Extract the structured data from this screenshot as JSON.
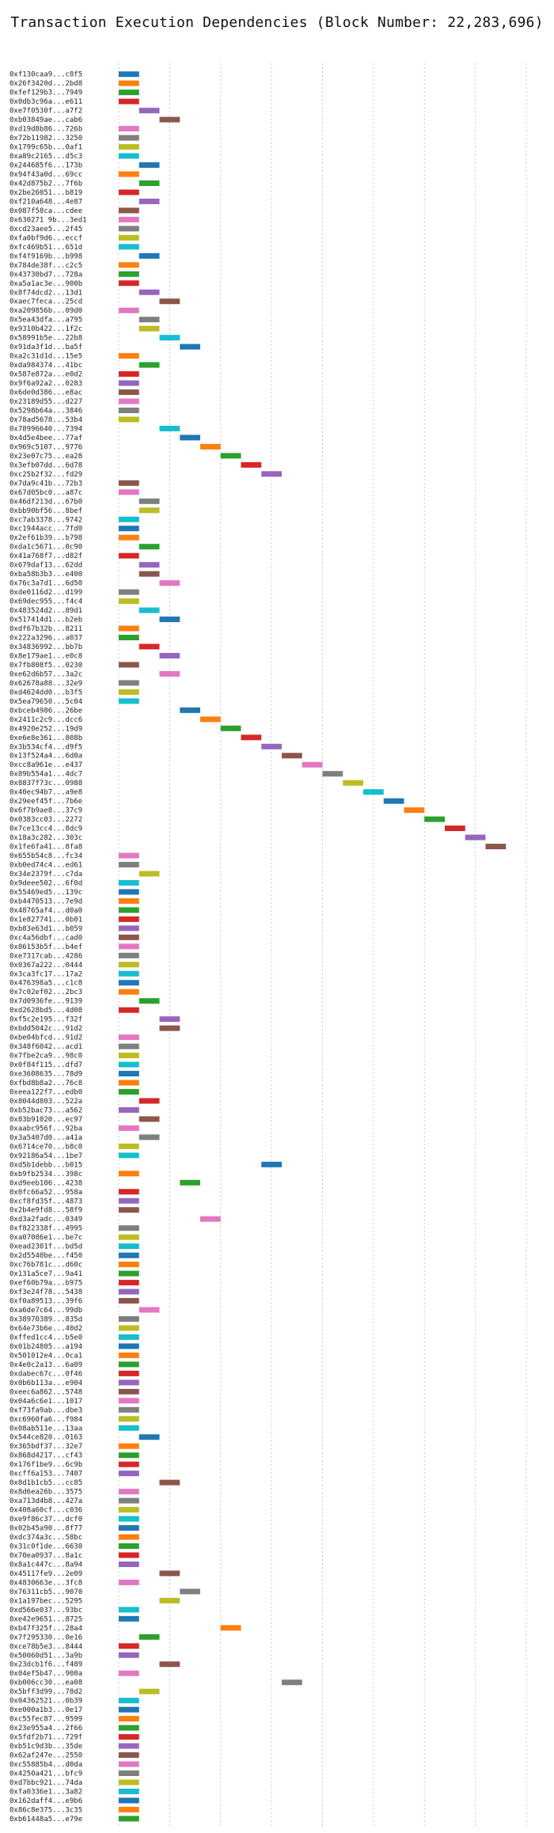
{
  "chart_data": {
    "type": "bar",
    "title": "Transaction Execution Dependencies (Block Number: 22,283,696)",
    "xlabel": "",
    "ylabel": "",
    "xlim": [
      0,
      20
    ],
    "xticks": [
      0,
      5,
      10,
      15,
      20
    ],
    "grid": true,
    "palette": [
      "#1f77b4",
      "#ff7f0e",
      "#2ca02c",
      "#d62728",
      "#9467bd",
      "#8c564b",
      "#e377c2",
      "#7f7f7f",
      "#bcbd22",
      "#17becf"
    ],
    "transactions": [
      {
        "label": "0xf130caa9...c8f5",
        "start": 0
      },
      {
        "label": "0x26f3420d...2bd8",
        "start": 0
      },
      {
        "label": "0xfef129b3...7949",
        "start": 0
      },
      {
        "label": "0x0db3c96a...e611",
        "start": 0
      },
      {
        "label": "0xe7f0530f...a7f2",
        "start": 1
      },
      {
        "label": "0xb03849ae...cab6",
        "start": 2
      },
      {
        "label": "0xd19d8b86...726b",
        "start": 0
      },
      {
        "label": "0x72b11982...3250",
        "start": 0
      },
      {
        "label": "0x1799c65b...0af1",
        "start": 0
      },
      {
        "label": "0xa89c2165...d5c3",
        "start": 0
      },
      {
        "label": "0x244685f6...173b",
        "start": 1
      },
      {
        "label": "0x94f43a0d...69cc",
        "start": 0
      },
      {
        "label": "0x42d875b2...7f6b",
        "start": 1
      },
      {
        "label": "0x2be26051...b819",
        "start": 0
      },
      {
        "label": "0xf210a648...4e87",
        "start": 1
      },
      {
        "label": "0x087f58ca...cdee",
        "start": 0
      },
      {
        "label": "0x630271 9b...3ed1",
        "start": 0
      },
      {
        "label": "0xcd23aee5...2f45",
        "start": 0
      },
      {
        "label": "0xfa0bf9d6...eccf",
        "start": 0
      },
      {
        "label": "0xfc469b51...651d",
        "start": 0
      },
      {
        "label": "0xf4f9169b...b998",
        "start": 1
      },
      {
        "label": "0x784de38f...c2c5",
        "start": 0
      },
      {
        "label": "0x43730bd7...728a",
        "start": 0
      },
      {
        "label": "0xa5a1ac3e...900b",
        "start": 0
      },
      {
        "label": "0x8f74dcd2...13d1",
        "start": 1
      },
      {
        "label": "0xaec7feca...25cd",
        "start": 2
      },
      {
        "label": "0xa209856b...09d0",
        "start": 0
      },
      {
        "label": "0x5ea43dfa...a795",
        "start": 1
      },
      {
        "label": "0x9310b422...1f2c",
        "start": 1
      },
      {
        "label": "0x58991b5e...22b8",
        "start": 2
      },
      {
        "label": "0x91da3f1d...ba5f",
        "start": 3
      },
      {
        "label": "0xa2c31d1d...15e5",
        "start": 0
      },
      {
        "label": "0xda984374...41bc",
        "start": 1
      },
      {
        "label": "0x587e872a...e0d2",
        "start": 0
      },
      {
        "label": "0x9f6a92a2...0283",
        "start": 0
      },
      {
        "label": "0x6de0d386...e8ac",
        "start": 0
      },
      {
        "label": "0x23189d55...d227",
        "start": 0
      },
      {
        "label": "0x5298b64a...3846",
        "start": 0
      },
      {
        "label": "0x78ad5678...53b4",
        "start": 0
      },
      {
        "label": "0x78996640...7394",
        "start": 2
      },
      {
        "label": "0x4d5e4bee...77af",
        "start": 3
      },
      {
        "label": "0x969c5107...9776",
        "start": 4
      },
      {
        "label": "0x23e07c75...ea28",
        "start": 5
      },
      {
        "label": "0x3efb07dd...6d78",
        "start": 6
      },
      {
        "label": "0xc25b2f32...fd29",
        "start": 7
      },
      {
        "label": "0x7da9c41b...72b3",
        "start": 0
      },
      {
        "label": "0x67d05bc0...a87c",
        "start": 0
      },
      {
        "label": "0x46df213d...67b0",
        "start": 1
      },
      {
        "label": "0xbb90bf56...8bef",
        "start": 1
      },
      {
        "label": "0xc7ab3378...9742",
        "start": 0
      },
      {
        "label": "0xc1944acc...7fd0",
        "start": 0
      },
      {
        "label": "0x2ef61b39...b798",
        "start": 0
      },
      {
        "label": "0xda1c5671...0c90",
        "start": 1
      },
      {
        "label": "0x41a768f7...d82f",
        "start": 0
      },
      {
        "label": "0x679daf13...62dd",
        "start": 1
      },
      {
        "label": "0xba58b3b3...e400",
        "start": 1
      },
      {
        "label": "0x76c3a7d1...6d50",
        "start": 2
      },
      {
        "label": "0xde0116d2...d199",
        "start": 0
      },
      {
        "label": "0x69dec955...f4c4",
        "start": 0
      },
      {
        "label": "0x483524d2...89d1",
        "start": 1
      },
      {
        "label": "0x517414d1...b2eb",
        "start": 2
      },
      {
        "label": "0xdf67b32b...8211",
        "start": 0
      },
      {
        "label": "0x222a3296...a037",
        "start": 0
      },
      {
        "label": "0x34836992...bb7b",
        "start": 1
      },
      {
        "label": "0x8e179ae1...e0c8",
        "start": 2
      },
      {
        "label": "0x7fb808f5...0230",
        "start": 0
      },
      {
        "label": "0xe62d6b57...3a2c",
        "start": 2
      },
      {
        "label": "0x62678a88...32e9",
        "start": 0
      },
      {
        "label": "0xd4624dd0...b3f5",
        "start": 0
      },
      {
        "label": "0x5ea79650...5c04",
        "start": 0
      },
      {
        "label": "0xbceb4986...26be",
        "start": 3
      },
      {
        "label": "0x2411c2c9...dcc6",
        "start": 4
      },
      {
        "label": "0x4920e252...19d9",
        "start": 5
      },
      {
        "label": "0xe6e8e361...808b",
        "start": 6
      },
      {
        "label": "0x3b534cf4...d9f5",
        "start": 7
      },
      {
        "label": "0x13f524a4...6d0a",
        "start": 8
      },
      {
        "label": "0xcc8a961e...e437",
        "start": 9
      },
      {
        "label": "0x89b554a1...4dc7",
        "start": 10
      },
      {
        "label": "0x8837f73c...0988",
        "start": 11
      },
      {
        "label": "0x40ec94b7...a9e8",
        "start": 12
      },
      {
        "label": "0x29eef45f...7b6e",
        "start": 13
      },
      {
        "label": "0x6f7b9ae8...37c9",
        "start": 14
      },
      {
        "label": "0x0383cc03...2272",
        "start": 15
      },
      {
        "label": "0x7ce13cc4...8dc9",
        "start": 16
      },
      {
        "label": "0x18a3c282...303c",
        "start": 17
      },
      {
        "label": "0x1fe6fa41...8fa8",
        "start": 18
      },
      {
        "label": "0x655b54c8...fc34",
        "start": 0
      },
      {
        "label": "0xb0ed74c4...ed61",
        "start": 0
      },
      {
        "label": "0x34e2379f...c7da",
        "start": 1
      },
      {
        "label": "0x9deee502...6f0d",
        "start": 0
      },
      {
        "label": "0x55469ed5...139c",
        "start": 0
      },
      {
        "label": "0xb4470513...7e9d",
        "start": 0
      },
      {
        "label": "0x48765af4...d0a0",
        "start": 0
      },
      {
        "label": "0x1e827741...0b01",
        "start": 0
      },
      {
        "label": "0xb83e63d1...b059",
        "start": 0
      },
      {
        "label": "0xc4a56dbf...cad0",
        "start": 0
      },
      {
        "label": "0x86153b5f...b4ef",
        "start": 0
      },
      {
        "label": "0xe7317cab...4286",
        "start": 0
      },
      {
        "label": "0x0367a222...0444",
        "start": 0
      },
      {
        "label": "0x3ca3fc17...17a2",
        "start": 0
      },
      {
        "label": "0x476398a5...c1c8",
        "start": 0
      },
      {
        "label": "0x7c02ef02...2bc3",
        "start": 0
      },
      {
        "label": "0x7d0936fe...9139",
        "start": 1
      },
      {
        "label": "0xd2628bd5...4d08",
        "start": 0
      },
      {
        "label": "0xf5c2e195...f32f",
        "start": 2
      },
      {
        "label": "0xbdd5042c...91d2",
        "start": 2
      },
      {
        "label": "0xbe04bfcd...91d2",
        "start": 0
      },
      {
        "label": "0x348f6042...acd1",
        "start": 0
      },
      {
        "label": "0x7fbe2ca9...98c0",
        "start": 0
      },
      {
        "label": "0x0f84f115...dfd7",
        "start": 0
      },
      {
        "label": "0xe3608635...78d9",
        "start": 0
      },
      {
        "label": "0xfbd8b8a2...76c8",
        "start": 0
      },
      {
        "label": "0xeea122f7...edb0",
        "start": 0
      },
      {
        "label": "0x8044d803...522a",
        "start": 1
      },
      {
        "label": "0xb52bac73...a562",
        "start": 0
      },
      {
        "label": "0x83b91020...ec97",
        "start": 1
      },
      {
        "label": "0xaabc956f...92ba",
        "start": 0
      },
      {
        "label": "0x3a5407d0...a41a",
        "start": 1
      },
      {
        "label": "0x6714ce70...b8c0",
        "start": 0
      },
      {
        "label": "0x92186a54...1be7",
        "start": 0
      },
      {
        "label": "0xd5b1debb...b015",
        "start": 7
      },
      {
        "label": "0xb9fb2534...398c",
        "start": 0
      },
      {
        "label": "0xd9eeb106...4238",
        "start": 3
      },
      {
        "label": "0x0fc66a52...958a",
        "start": 0
      },
      {
        "label": "0xcf8fd35f...4873",
        "start": 0
      },
      {
        "label": "0x2b4e9fd8...58f9",
        "start": 0
      },
      {
        "label": "0xd3a2fadc...0349",
        "start": 4
      },
      {
        "label": "0xf822338f...4995",
        "start": 0
      },
      {
        "label": "0xa07086e1...be7c",
        "start": 0
      },
      {
        "label": "0xead2301f...bd5d",
        "start": 0
      },
      {
        "label": "0x2d5540be...f450",
        "start": 0
      },
      {
        "label": "0xc76b781c...d60c",
        "start": 0
      },
      {
        "label": "0x131a5ce7...9a41",
        "start": 0
      },
      {
        "label": "0xef60b79a...b975",
        "start": 0
      },
      {
        "label": "0xf3e24f78...5438",
        "start": 0
      },
      {
        "label": "0xf0a89513...39f6",
        "start": 0
      },
      {
        "label": "0xa6de7c64...99db",
        "start": 1
      },
      {
        "label": "0x38970389...835d",
        "start": 0
      },
      {
        "label": "0x64e73b6e...40d2",
        "start": 0
      },
      {
        "label": "0xffed1cc4...b5e0",
        "start": 0
      },
      {
        "label": "0x01b24805...a194",
        "start": 0
      },
      {
        "label": "0x501012e4...0ca1",
        "start": 0
      },
      {
        "label": "0x4e0c2a13...6a09",
        "start": 0
      },
      {
        "label": "0xdabec67c...0f46",
        "start": 0
      },
      {
        "label": "0x0b6b113a...e904",
        "start": 0
      },
      {
        "label": "0xeec6a862...5748",
        "start": 0
      },
      {
        "label": "0x04a6c6e1...1017",
        "start": 0
      },
      {
        "label": "0xf73fa9ab...dbe3",
        "start": 0
      },
      {
        "label": "0xc6960fa6...f984",
        "start": 0
      },
      {
        "label": "0x08ab511e...13aa",
        "start": 0
      },
      {
        "label": "0x544ce820...0163",
        "start": 1
      },
      {
        "label": "0x365bdf37...32e7",
        "start": 0
      },
      {
        "label": "0x868d4217...cf43",
        "start": 0
      },
      {
        "label": "0x176f1be9...6c9b",
        "start": 0
      },
      {
        "label": "0xcff6a153...7407",
        "start": 0
      },
      {
        "label": "0x8d1b1cb5...cc85",
        "start": 2
      },
      {
        "label": "0x8d6ea26b...3575",
        "start": 0
      },
      {
        "label": "0xa713d4b8...427a",
        "start": 0
      },
      {
        "label": "0x408a60cf...c036",
        "start": 0
      },
      {
        "label": "0xe9f86c37...dcf0",
        "start": 0
      },
      {
        "label": "0x02b45a90...8f77",
        "start": 0
      },
      {
        "label": "0xdc374a3c...58bc",
        "start": 0
      },
      {
        "label": "0x31c0f1de...6630",
        "start": 0
      },
      {
        "label": "0x70ea0937...8a1c",
        "start": 0
      },
      {
        "label": "0x8a1c447c...8a94",
        "start": 0
      },
      {
        "label": "0x45117fe9...2e09",
        "start": 2
      },
      {
        "label": "0x4830663e...3fc8",
        "start": 0
      },
      {
        "label": "0x76311cb5...9070",
        "start": 3
      },
      {
        "label": "0x1a197bec...5295",
        "start": 2
      },
      {
        "label": "0xd566e037...93bc",
        "start": 0
      },
      {
        "label": "0xe42e9651...8725",
        "start": 0
      },
      {
        "label": "0xb47f325f...28a4",
        "start": 5
      },
      {
        "label": "0x7f295330...0e16",
        "start": 1
      },
      {
        "label": "0xce78b5e3...8444",
        "start": 0
      },
      {
        "label": "0x50060d51...3a9b",
        "start": 0
      },
      {
        "label": "0x23dcb1f6...f489",
        "start": 2
      },
      {
        "label": "0x04ef5b47...900a",
        "start": 0
      },
      {
        "label": "0xb006cc30...ea08",
        "start": 8
      },
      {
        "label": "0x5bff3d99...78d2",
        "start": 1
      },
      {
        "label": "0x04362521...0b39",
        "start": 0
      },
      {
        "label": "0xe000a1b3...0e17",
        "start": 0
      },
      {
        "label": "0xc55fec87...9599",
        "start": 0
      },
      {
        "label": "0x23e955a4...2f66",
        "start": 0
      },
      {
        "label": "0x5fdf2b71...729f",
        "start": 0
      },
      {
        "label": "0xb51c9d3b...35de",
        "start": 0
      },
      {
        "label": "0x62af247e...2550",
        "start": 0
      },
      {
        "label": "0xc55885b4...d0da",
        "start": 0
      },
      {
        "label": "0x4250a421...bfc9",
        "start": 0
      },
      {
        "label": "0xd7bbc921...74da",
        "start": 0
      },
      {
        "label": "0xfa0336e1...3a82",
        "start": 0
      },
      {
        "label": "0x162daff4...e9b6",
        "start": 0
      },
      {
        "label": "0x86c8e375...3c35",
        "start": 0
      },
      {
        "label": "0xb61448a5...e79e",
        "start": 0
      }
    ]
  }
}
